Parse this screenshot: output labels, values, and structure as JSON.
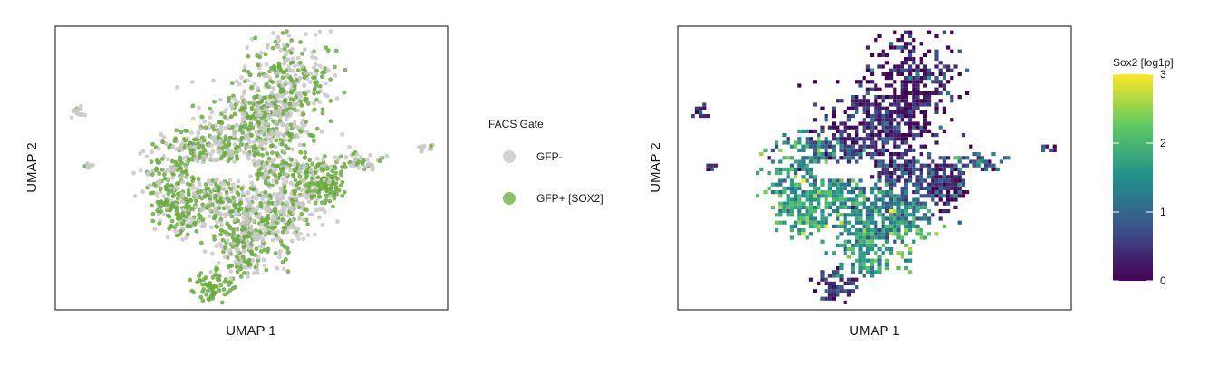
{
  "chart_data": [
    {
      "type": "scatter",
      "panel": "left",
      "xlabel": "UMAP 1",
      "ylabel": "UMAP 2",
      "grid": false,
      "legend": {
        "title": "FACS Gate",
        "placement": "right",
        "entries": [
          {
            "label": "GFP-",
            "color": "#d3d3d3"
          },
          {
            "label": "GFP+ [SOX2]",
            "color": "#8cc36a"
          }
        ]
      },
      "point_colors": {
        "gfp_neg": "#c8c8c8",
        "gfp_pos": "#6aab3e"
      }
    },
    {
      "type": "heatmap",
      "panel": "right",
      "xlabel": "UMAP 1",
      "ylabel": "UMAP 2",
      "grid": false,
      "colorbar": {
        "title": "Sox2 [log1p]",
        "ticks": [
          "0",
          "1",
          "2",
          "3"
        ],
        "range": [
          0,
          3
        ],
        "colors": [
          "#440154",
          "#3b528b",
          "#21908c",
          "#5ec962",
          "#fde725"
        ]
      }
    }
  ]
}
